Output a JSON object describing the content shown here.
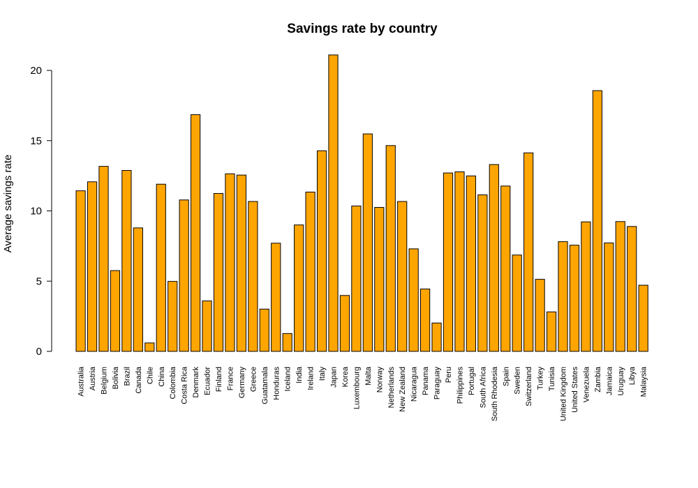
{
  "chart_data": {
    "type": "bar",
    "title": "Savings rate by country",
    "xlabel": "",
    "ylabel": "Average savings rate",
    "ylim": [
      0,
      22
    ],
    "yticks": [
      0,
      5,
      10,
      15,
      20
    ],
    "grid": false,
    "legend": "none",
    "bar_color": "#FFA500",
    "bar_border": "#000000",
    "categories": [
      "Australia",
      "Austria",
      "Belgium",
      "Bolivia",
      "Brazil",
      "Canada",
      "Chile",
      "China",
      "Colombia",
      "Costa Rica",
      "Denmark",
      "Ecuador",
      "Finland",
      "France",
      "Germany",
      "Greece",
      "Guatamala",
      "Honduras",
      "Iceland",
      "India",
      "Ireland",
      "Italy",
      "Japan",
      "Korea",
      "Luxembourg",
      "Malta",
      "Norway",
      "Netherlands",
      "New Zealand",
      "Nicaragua",
      "Panama",
      "Paraguay",
      "Peru",
      "Philippines",
      "Portugal",
      "South Africa",
      "South Rhodesia",
      "Spain",
      "Sweden",
      "Switzerland",
      "Turkey",
      "Tunisia",
      "United Kingdom",
      "United States",
      "Venezuela",
      "Zambia",
      "Jamaica",
      "Uruguay",
      "Libya",
      "Malaysia"
    ],
    "values": [
      11.43,
      12.07,
      13.17,
      5.75,
      12.88,
      8.79,
      0.6,
      11.9,
      4.98,
      10.78,
      16.85,
      3.59,
      11.24,
      12.64,
      12.55,
      10.67,
      3.01,
      7.7,
      1.27,
      9.0,
      11.34,
      14.28,
      21.1,
      3.98,
      10.35,
      15.48,
      10.25,
      14.65,
      10.67,
      7.3,
      4.44,
      2.02,
      12.7,
      12.78,
      12.49,
      11.14,
      13.3,
      11.77,
      6.86,
      14.13,
      5.13,
      2.81,
      7.81,
      7.56,
      9.22,
      18.56,
      7.72,
      9.24,
      8.89,
      4.71
    ]
  }
}
